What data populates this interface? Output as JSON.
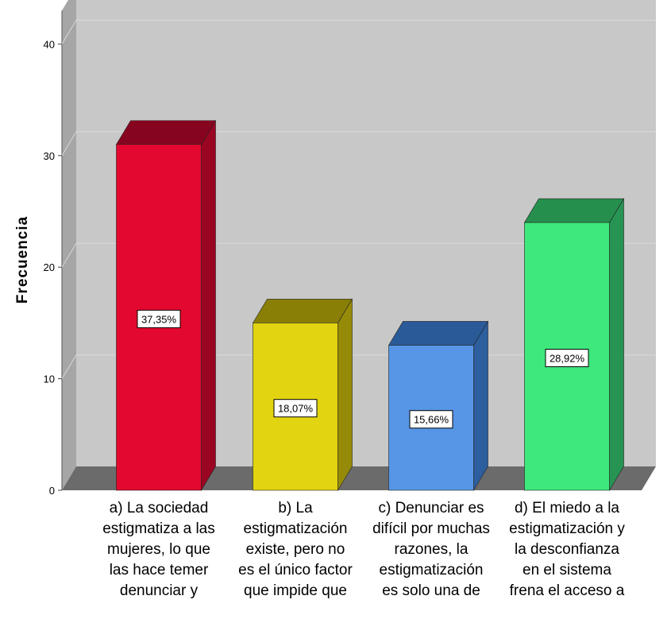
{
  "chart_data": {
    "type": "bar",
    "ylabel": "Frecuencia",
    "ylim": [
      0,
      43
    ],
    "yticks": [
      "0",
      "10",
      "20",
      "30",
      "40"
    ],
    "grid": true,
    "categories": [
      [
        "a) La sociedad",
        "estigmatiza a las",
        "mujeres, lo que",
        "las hace temer",
        "denunciar y"
      ],
      [
        "b) La",
        "estigmatización",
        "existe, pero no",
        "es el único factor",
        "que impide que"
      ],
      [
        "c) Denunciar es",
        "difícil por muchas",
        "razones, la",
        "estigmatización",
        "es solo una de"
      ],
      [
        "d) El miedo a la",
        "estigmatización y",
        "la desconfianza",
        "en el sistema",
        "frena el acceso a"
      ]
    ],
    "values": [
      31,
      15,
      13,
      24
    ],
    "data_labels": [
      "37,35%",
      "18,07%",
      "15,66%",
      "28,92%"
    ],
    "colors": {
      "front": [
        "#e3082f",
        "#e3d411",
        "#5796e6",
        "#3ee87c"
      ],
      "top": [
        "#870420",
        "#8a7f06",
        "#2a5a97",
        "#25904d"
      ],
      "side": [
        "#9a0522",
        "#968b08",
        "#2d5e9e",
        "#279453"
      ]
    }
  }
}
